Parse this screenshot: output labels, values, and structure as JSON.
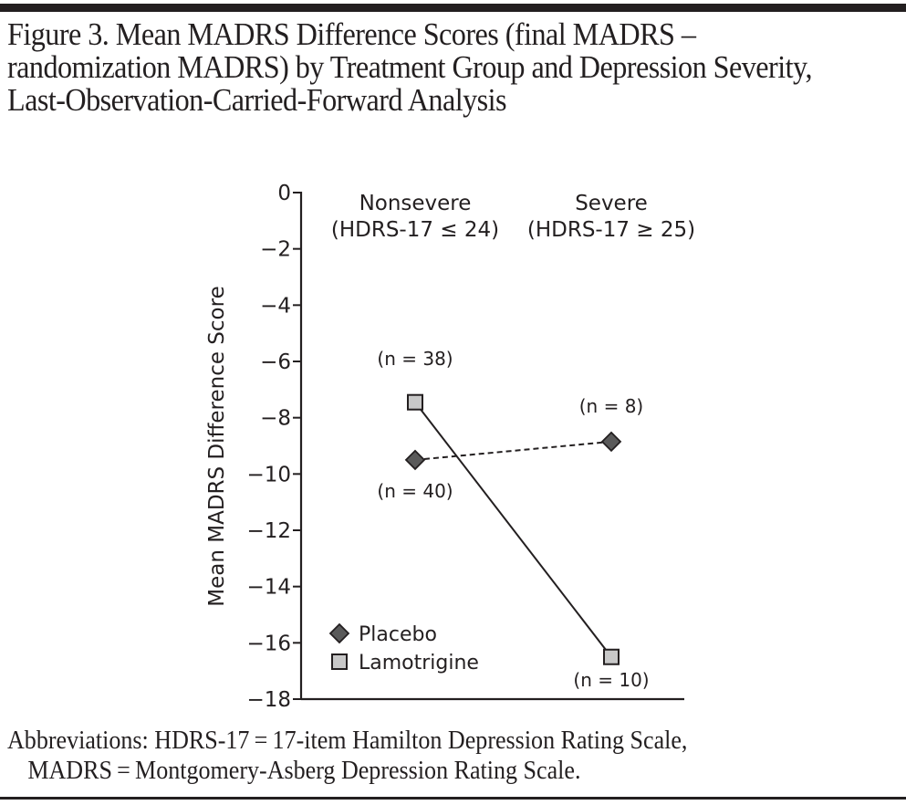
{
  "figure": {
    "title": "Figure 3. Mean MADRS Difference Scores (final MADRS – randomization MADRS) by Treatment Group and Depression Severity, Last-Observation-Carried-Forward Analysis",
    "footnote_line1": "Abbreviations: HDRS-17 = 17-item Hamilton Depression Rating Scale,",
    "footnote_line2": "MADRS = Montgomery-Asberg Depression Rating Scale."
  },
  "chart_data": {
    "type": "line",
    "title": "Mean MADRS Difference Scores (final MADRS – randomization MADRS) by Treatment Group and Depression Severity, Last-Observation-Carried-Forward Analysis",
    "xlabel": "",
    "ylabel": "Mean MADRS Difference Score",
    "ylim": [
      -18,
      0
    ],
    "yticks": [
      0,
      -2,
      -4,
      -6,
      -8,
      -10,
      -12,
      -14,
      -16,
      -18
    ],
    "ytick_labels": [
      "0",
      "−2",
      "−4",
      "−6",
      "−8",
      "−10",
      "−12",
      "−14",
      "−16",
      "−18"
    ],
    "grid": false,
    "categories": [
      "Nonsevere",
      "Severe"
    ],
    "category_labels": [
      {
        "line1": "Nonsevere",
        "line2": "(HDRS-17 ≤ 24)"
      },
      {
        "line1": "Severe",
        "line2": "(HDRS-17 ≥ 25)"
      }
    ],
    "legend_position": "bottom-left",
    "series": [
      {
        "name": "Placebo",
        "marker": "diamond",
        "line_style": "dashed",
        "color": "#5a5a5a",
        "values": [
          -9.5,
          -8.85
        ],
        "n_labels": [
          "(n = 40)",
          "(n = 8)"
        ]
      },
      {
        "name": "Lamotrigine",
        "marker": "square",
        "line_style": "solid",
        "color": "#c8c8c8",
        "values": [
          -7.45,
          -16.5
        ],
        "n_labels": [
          "(n = 38)",
          "(n = 10)"
        ]
      }
    ]
  }
}
